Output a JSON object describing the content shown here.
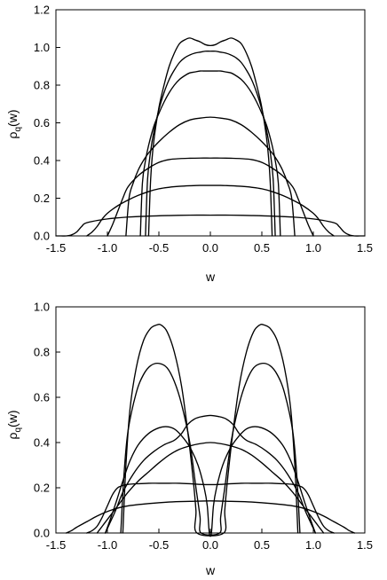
{
  "chart_data": [
    {
      "type": "line",
      "title": "",
      "xlabel": "w",
      "ylabel_main": "ρ",
      "ylabel_sub": "q",
      "ylabel_tail": "(w)",
      "xlim": [
        -1.5,
        1.5
      ],
      "ylim": [
        0,
        1.2
      ],
      "xticks": [
        "-1.5",
        "-1.0",
        "-0.5",
        "0.0",
        "0.5",
        "1.0",
        "1.5"
      ],
      "yticks": [
        "0.0",
        "0.2",
        "0.4",
        "0.6",
        "0.8",
        "1.0",
        "1.2"
      ],
      "grid": false,
      "series": [
        {
          "x": [
            -0.6,
            -0.58,
            -0.55,
            -0.5,
            -0.45,
            -0.4,
            -0.35,
            -0.3,
            -0.25,
            -0.2,
            -0.15,
            -0.1,
            -0.05,
            0.0,
            0.05,
            0.1,
            0.15,
            0.2,
            0.25,
            0.3,
            0.35,
            0.4,
            0.45,
            0.5,
            0.55,
            0.58,
            0.6
          ],
          "y": [
            0.0,
            0.3,
            0.5,
            0.68,
            0.8,
            0.9,
            0.97,
            1.02,
            1.04,
            1.05,
            1.04,
            1.03,
            1.015,
            1.01,
            1.015,
            1.03,
            1.04,
            1.05,
            1.04,
            1.02,
            0.97,
            0.9,
            0.8,
            0.68,
            0.5,
            0.3,
            0.0
          ]
        },
        {
          "x": [
            -0.63,
            -0.61,
            -0.58,
            -0.55,
            -0.5,
            -0.45,
            -0.4,
            -0.35,
            -0.3,
            -0.25,
            -0.2,
            -0.15,
            -0.1,
            -0.05,
            0.0,
            0.05,
            0.1,
            0.15,
            0.2,
            0.25,
            0.3,
            0.35,
            0.4,
            0.45,
            0.5,
            0.55,
            0.58,
            0.61,
            0.63
          ],
          "y": [
            0.0,
            0.3,
            0.45,
            0.55,
            0.67,
            0.76,
            0.83,
            0.88,
            0.92,
            0.945,
            0.96,
            0.97,
            0.975,
            0.98,
            0.98,
            0.98,
            0.975,
            0.97,
            0.96,
            0.945,
            0.92,
            0.88,
            0.83,
            0.76,
            0.67,
            0.55,
            0.45,
            0.3,
            0.0
          ]
        },
        {
          "x": [
            -0.68,
            -0.66,
            -0.63,
            -0.6,
            -0.55,
            -0.5,
            -0.45,
            -0.4,
            -0.35,
            -0.3,
            -0.25,
            -0.2,
            -0.15,
            -0.1,
            -0.05,
            0.0,
            0.05,
            0.1,
            0.15,
            0.2,
            0.25,
            0.3,
            0.35,
            0.4,
            0.45,
            0.5,
            0.55,
            0.6,
            0.63,
            0.66,
            0.68
          ],
          "y": [
            0.0,
            0.28,
            0.4,
            0.48,
            0.58,
            0.65,
            0.71,
            0.76,
            0.8,
            0.83,
            0.85,
            0.865,
            0.87,
            0.875,
            0.875,
            0.875,
            0.875,
            0.875,
            0.87,
            0.865,
            0.85,
            0.83,
            0.8,
            0.76,
            0.71,
            0.65,
            0.58,
            0.48,
            0.4,
            0.28,
            0.0
          ]
        },
        {
          "x": [
            -0.82,
            -0.79,
            -0.75,
            -0.7,
            -0.65,
            -0.6,
            -0.5,
            -0.4,
            -0.3,
            -0.2,
            -0.1,
            0.0,
            0.1,
            0.2,
            0.3,
            0.4,
            0.5,
            0.6,
            0.65,
            0.7,
            0.75,
            0.79,
            0.82
          ],
          "y": [
            0.0,
            0.2,
            0.28,
            0.35,
            0.4,
            0.44,
            0.5,
            0.55,
            0.59,
            0.615,
            0.625,
            0.63,
            0.625,
            0.615,
            0.59,
            0.55,
            0.5,
            0.44,
            0.4,
            0.35,
            0.28,
            0.2,
            0.0
          ]
        },
        {
          "x": [
            -1.0,
            -0.95,
            -0.9,
            -0.85,
            -0.8,
            -0.7,
            -0.6,
            -0.5,
            -0.4,
            -0.3,
            -0.2,
            -0.1,
            0.0,
            0.1,
            0.2,
            0.3,
            0.4,
            0.5,
            0.6,
            0.7,
            0.8,
            0.85,
            0.9,
            0.95,
            1.0
          ],
          "y": [
            0.0,
            0.06,
            0.13,
            0.2,
            0.26,
            0.32,
            0.36,
            0.39,
            0.405,
            0.41,
            0.412,
            0.413,
            0.413,
            0.413,
            0.412,
            0.41,
            0.405,
            0.39,
            0.36,
            0.32,
            0.26,
            0.2,
            0.13,
            0.06,
            0.0
          ]
        },
        {
          "x": [
            -1.2,
            -1.15,
            -1.1,
            -1.05,
            -1.0,
            -0.9,
            -0.8,
            -0.7,
            -0.6,
            -0.5,
            -0.4,
            -0.3,
            -0.2,
            -0.1,
            0.0,
            0.1,
            0.2,
            0.3,
            0.4,
            0.5,
            0.6,
            0.7,
            0.8,
            0.9,
            1.0,
            1.05,
            1.1,
            1.15,
            1.2
          ],
          "y": [
            0.0,
            0.02,
            0.05,
            0.09,
            0.12,
            0.16,
            0.19,
            0.215,
            0.235,
            0.25,
            0.258,
            0.263,
            0.266,
            0.268,
            0.268,
            0.268,
            0.266,
            0.263,
            0.258,
            0.25,
            0.235,
            0.215,
            0.19,
            0.16,
            0.12,
            0.09,
            0.05,
            0.02,
            0.0
          ]
        },
        {
          "x": [
            -1.5,
            -1.45,
            -1.4,
            -1.35,
            -1.3,
            -1.25,
            -1.2,
            -1.0,
            -0.8,
            -0.6,
            -0.4,
            -0.2,
            0.0,
            0.2,
            0.4,
            0.6,
            0.8,
            1.0,
            1.2,
            1.25,
            1.3,
            1.35,
            1.4,
            1.45,
            1.5
          ],
          "y": [
            0.0,
            0.0,
            0.0,
            0.005,
            0.02,
            0.05,
            0.07,
            0.09,
            0.1,
            0.105,
            0.108,
            0.11,
            0.11,
            0.11,
            0.108,
            0.105,
            0.1,
            0.09,
            0.07,
            0.05,
            0.02,
            0.005,
            0.0,
            0.0,
            0.0
          ]
        }
      ]
    },
    {
      "type": "line",
      "title": "",
      "xlabel": "w",
      "ylabel_main": "ρ",
      "ylabel_sub": "q",
      "ylabel_tail": "(w)",
      "xlim": [
        -1.5,
        1.5
      ],
      "ylim": [
        0,
        1.0
      ],
      "xticks": [
        "-1.5",
        "-1.0",
        "-0.5",
        "0.0",
        "0.5",
        "1.0",
        "1.5"
      ],
      "yticks": [
        "0.0",
        "0.2",
        "0.4",
        "0.6",
        "0.8",
        "1.0"
      ],
      "grid": false,
      "series": [
        {
          "x": [
            -0.85,
            -0.82,
            -0.78,
            -0.72,
            -0.65,
            -0.58,
            -0.52,
            -0.48,
            -0.42,
            -0.35,
            -0.28,
            -0.22,
            -0.17,
            -0.14,
            -0.13,
            0.13,
            0.14,
            0.17,
            0.22,
            0.28,
            0.35,
            0.42,
            0.48,
            0.52,
            0.58,
            0.65,
            0.72,
            0.78,
            0.82,
            0.85
          ],
          "y": [
            0.0,
            0.3,
            0.55,
            0.73,
            0.85,
            0.905,
            0.92,
            0.92,
            0.89,
            0.8,
            0.65,
            0.45,
            0.25,
            0.1,
            0.0,
            0.0,
            0.1,
            0.25,
            0.45,
            0.65,
            0.8,
            0.89,
            0.92,
            0.92,
            0.905,
            0.85,
            0.73,
            0.55,
            0.3,
            0.0
          ]
        },
        {
          "x": [
            -0.87,
            -0.84,
            -0.8,
            -0.72,
            -0.65,
            -0.58,
            -0.5,
            -0.42,
            -0.35,
            -0.28,
            -0.2,
            -0.14,
            -0.1,
            -0.09,
            0.09,
            0.1,
            0.14,
            0.2,
            0.28,
            0.35,
            0.42,
            0.5,
            0.58,
            0.65,
            0.72,
            0.8,
            0.84,
            0.87
          ],
          "y": [
            0.0,
            0.25,
            0.45,
            0.62,
            0.7,
            0.74,
            0.75,
            0.73,
            0.67,
            0.57,
            0.4,
            0.2,
            0.07,
            0.0,
            0.0,
            0.07,
            0.2,
            0.4,
            0.57,
            0.67,
            0.73,
            0.75,
            0.74,
            0.7,
            0.62,
            0.45,
            0.25,
            0.0
          ]
        },
        {
          "x": [
            -1.02,
            -0.98,
            -0.92,
            -0.85,
            -0.78,
            -0.7,
            -0.6,
            -0.5,
            -0.42,
            -0.35,
            -0.28,
            -0.2,
            -0.12,
            -0.06,
            -0.03,
            -0.01,
            0.01,
            0.03,
            0.06,
            0.12,
            0.2,
            0.28,
            0.35,
            0.42,
            0.5,
            0.6,
            0.7,
            0.78,
            0.85,
            0.92,
            0.98,
            1.02
          ],
          "y": [
            0.0,
            0.05,
            0.13,
            0.23,
            0.32,
            0.39,
            0.44,
            0.465,
            0.47,
            0.46,
            0.43,
            0.38,
            0.3,
            0.2,
            0.12,
            0.0,
            0.0,
            0.12,
            0.2,
            0.3,
            0.38,
            0.43,
            0.46,
            0.47,
            0.465,
            0.44,
            0.39,
            0.32,
            0.23,
            0.13,
            0.05,
            0.0
          ]
        },
        {
          "x": [
            -1.02,
            -0.98,
            -0.92,
            -0.85,
            -0.75,
            -0.65,
            -0.55,
            -0.45,
            -0.35,
            -0.28,
            -0.22,
            -0.15,
            -0.08,
            0.0,
            0.08,
            0.15,
            0.22,
            0.28,
            0.35,
            0.45,
            0.55,
            0.65,
            0.75,
            0.85,
            0.92,
            0.98,
            1.02
          ],
          "y": [
            0.0,
            0.04,
            0.1,
            0.18,
            0.26,
            0.32,
            0.36,
            0.39,
            0.41,
            0.44,
            0.48,
            0.505,
            0.515,
            0.52,
            0.515,
            0.505,
            0.48,
            0.44,
            0.41,
            0.39,
            0.36,
            0.32,
            0.26,
            0.18,
            0.1,
            0.04,
            0.0
          ]
        },
        {
          "x": [
            -1.1,
            -1.05,
            -1.0,
            -0.9,
            -0.8,
            -0.7,
            -0.6,
            -0.5,
            -0.4,
            -0.3,
            -0.2,
            -0.1,
            0.0,
            0.1,
            0.2,
            0.3,
            0.4,
            0.5,
            0.6,
            0.7,
            0.8,
            0.9,
            1.0,
            1.05,
            1.1
          ],
          "y": [
            0.0,
            0.03,
            0.06,
            0.12,
            0.18,
            0.23,
            0.27,
            0.31,
            0.345,
            0.37,
            0.385,
            0.395,
            0.4,
            0.395,
            0.385,
            0.37,
            0.345,
            0.31,
            0.27,
            0.23,
            0.18,
            0.12,
            0.06,
            0.03,
            0.0
          ]
        },
        {
          "x": [
            -1.4,
            -1.35,
            -1.3,
            -1.2,
            -1.1,
            -1.0,
            -0.9,
            -0.8,
            -0.6,
            -0.4,
            -0.2,
            0.0,
            0.2,
            0.4,
            0.6,
            0.8,
            0.9,
            1.0,
            1.1,
            1.2,
            1.3,
            1.35,
            1.4
          ],
          "y": [
            0.0,
            0.01,
            0.025,
            0.05,
            0.075,
            0.095,
            0.11,
            0.12,
            0.13,
            0.137,
            0.14,
            0.142,
            0.14,
            0.137,
            0.13,
            0.12,
            0.11,
            0.095,
            0.075,
            0.05,
            0.025,
            0.01,
            0.0
          ]
        },
        {
          "x": [
            -1.2,
            -1.15,
            -1.1,
            -1.05,
            -1.0,
            -0.95,
            -0.9,
            -0.85,
            -0.8,
            -0.7,
            -0.6,
            -0.5,
            -0.4,
            -0.3,
            -0.2,
            -0.1,
            0.0,
            0.1,
            0.2,
            0.3,
            0.4,
            0.5,
            0.6,
            0.7,
            0.8,
            0.85,
            0.9,
            0.95,
            1.0,
            1.05,
            1.1,
            1.15,
            1.2
          ],
          "y": [
            0.0,
            0.01,
            0.03,
            0.07,
            0.12,
            0.17,
            0.2,
            0.21,
            0.215,
            0.218,
            0.22,
            0.22,
            0.22,
            0.22,
            0.218,
            0.215,
            0.214,
            0.215,
            0.218,
            0.22,
            0.22,
            0.22,
            0.22,
            0.218,
            0.215,
            0.21,
            0.2,
            0.17,
            0.12,
            0.07,
            0.03,
            0.01,
            0.0
          ]
        }
      ]
    }
  ]
}
